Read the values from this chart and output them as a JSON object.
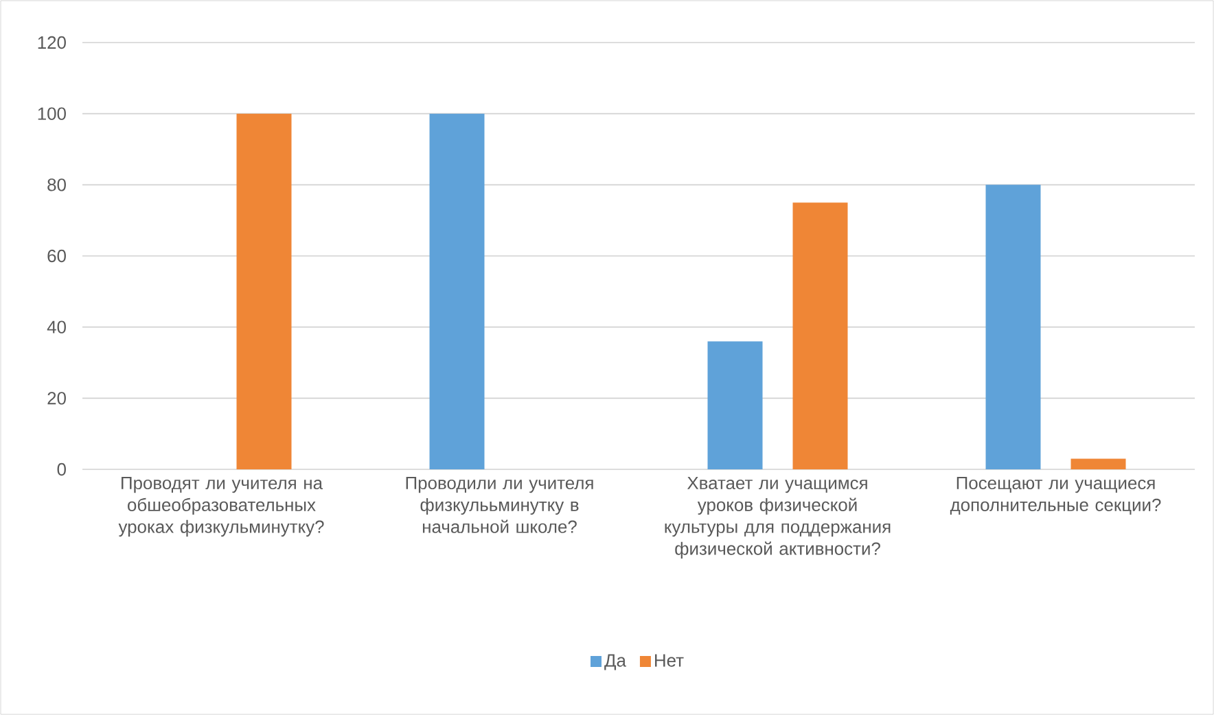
{
  "chart_data": {
    "type": "bar",
    "categories": [
      "Проводят ли учителя на обшеобразовательных уроках физкульминутку?",
      "Проводили ли учителя физкулььминутку в начальной школе?",
      "Хватает ли учащимся уроков физической культуры для поддержания физической активности?",
      "Посещают ли учащиеся дополнительные секции?"
    ],
    "series": [
      {
        "name": "Да",
        "color": "#5fa2d9",
        "values": [
          0,
          100,
          36,
          80
        ]
      },
      {
        "name": "Нет",
        "color": "#ef8636",
        "values": [
          100,
          0,
          75,
          3
        ]
      }
    ],
    "ylim": [
      0,
      120
    ],
    "yticks": [
      0,
      20,
      40,
      60,
      80,
      100,
      120
    ],
    "grid": "y",
    "legend": "bottom"
  }
}
